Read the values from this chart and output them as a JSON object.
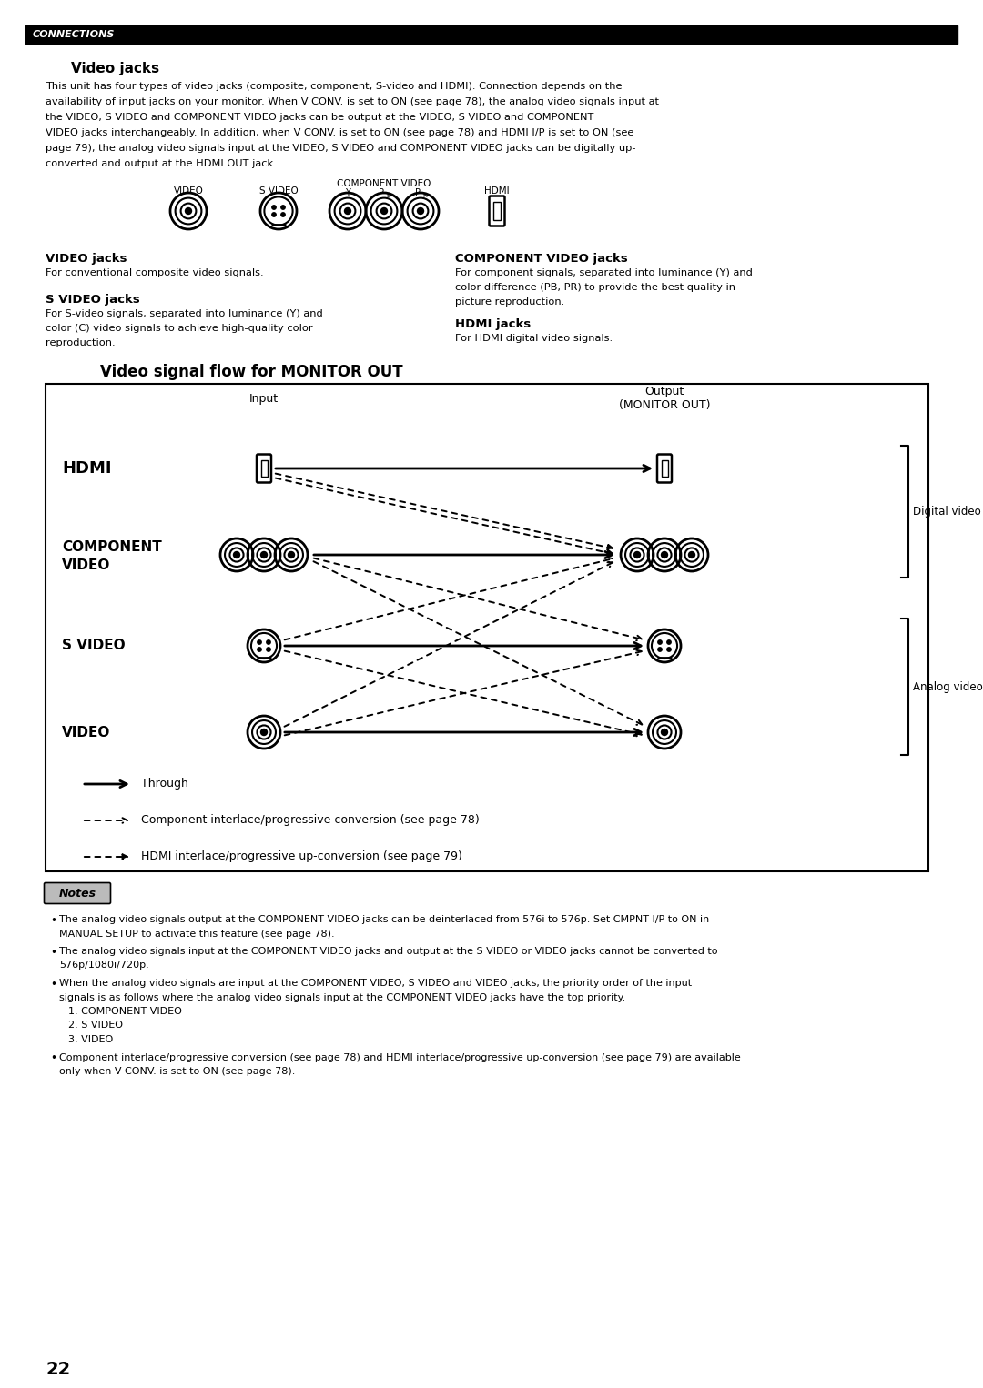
{
  "page_number": "22",
  "header_text": "CONNECTIONS",
  "section_title": "Video jacks",
  "body_text_lines": [
    "This unit has four types of video jacks (composite, component, S-video and HDMI). Connection depends on the",
    "availability of input jacks on your monitor. When V CONV. is set to ON (see page 78), the analog video signals input at",
    "the VIDEO, S VIDEO and COMPONENT VIDEO jacks can be output at the VIDEO, S VIDEO and COMPONENT",
    "VIDEO jacks interchangeably. In addition, when V CONV. is set to ON (see page 78) and HDMI I/P is set to ON (see",
    "page 79), the analog video signals input at the VIDEO, S VIDEO and COMPONENT VIDEO jacks can be digitally up-",
    "converted and output at the HDMI OUT jack."
  ],
  "diagram_title": "Video signal flow for MONITOR OUT",
  "legend": {
    "through": "Through",
    "component_conv": "Component interlace/progressive conversion (see page 78)",
    "hdmi_conv": "HDMI interlace/progressive up-conversion (see page 79)"
  },
  "notes_title": "Notes",
  "notes": [
    [
      "The analog video signals output at the COMPONENT VIDEO jacks can be deinterlaced from 576i to 576p. Set CMPNT I/P to ON in",
      "MANUAL SETUP to activate this feature (see page 78)."
    ],
    [
      "The analog video signals input at the COMPONENT VIDEO jacks and output at the S VIDEO or VIDEO jacks cannot be converted to",
      "576p/1080i/720p."
    ],
    [
      "When the analog video signals are input at the COMPONENT VIDEO, S VIDEO and VIDEO jacks, the priority order of the input",
      "signals is as follows where the analog video signals input at the COMPONENT VIDEO jacks have the top priority.",
      "1. COMPONENT VIDEO",
      "2. S VIDEO",
      "3. VIDEO"
    ],
    [
      "Component interlace/progressive conversion (see page 78) and HDMI interlace/progressive up-conversion (see page 79) are available",
      "only when V CONV. is set to ON (see page 78)."
    ]
  ],
  "bg_color": "#ffffff",
  "text_color": "#000000",
  "header_bg": "#000000",
  "header_text_color": "#ffffff"
}
